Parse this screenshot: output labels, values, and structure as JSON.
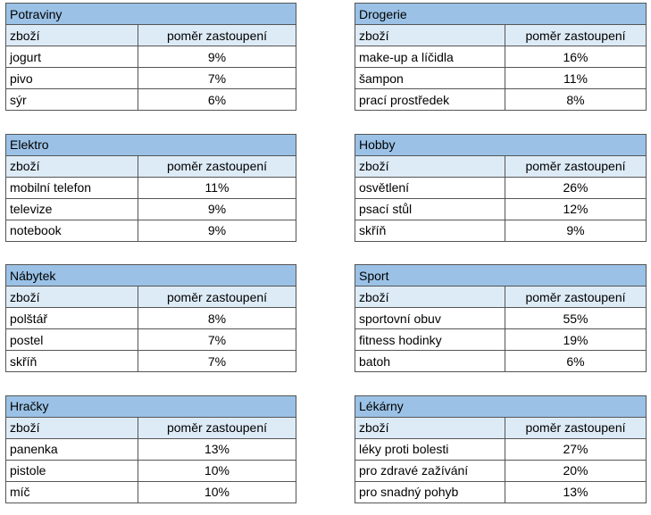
{
  "tables": [
    {
      "title": "Potraviny",
      "header": [
        "zboží",
        "poměr zastoupení"
      ],
      "rows": [
        [
          "jogurt",
          "9%"
        ],
        [
          "pivo",
          "7%"
        ],
        [
          "sýr",
          "6%"
        ]
      ]
    },
    {
      "title": "Drogerie",
      "header": [
        "zboží",
        "poměr zastoupení"
      ],
      "rows": [
        [
          "make-up a líčidla",
          "16%"
        ],
        [
          "šampon",
          "11%"
        ],
        [
          "prací prostředek",
          "8%"
        ]
      ]
    },
    {
      "title": "Elektro",
      "header": [
        "zboží",
        "poměr zastoupení"
      ],
      "rows": [
        [
          "mobilní telefon",
          "11%"
        ],
        [
          "televize",
          "9%"
        ],
        [
          "notebook",
          "9%"
        ]
      ]
    },
    {
      "title": "Hobby",
      "header": [
        "zboží",
        "poměr zastoupení"
      ],
      "rows": [
        [
          "osvětlení",
          "26%"
        ],
        [
          "psací stůl",
          "12%"
        ],
        [
          "skříň",
          "9%"
        ]
      ]
    },
    {
      "title": "Nábytek",
      "header": [
        "zboží",
        "poměr zastoupení"
      ],
      "rows": [
        [
          "polštář",
          "8%"
        ],
        [
          "postel",
          "7%"
        ],
        [
          "skříň",
          "7%"
        ]
      ]
    },
    {
      "title": "Sport",
      "header": [
        "zboží",
        "poměr zastoupení"
      ],
      "rows": [
        [
          "sportovní obuv",
          "55%"
        ],
        [
          "fitness hodinky",
          "19%"
        ],
        [
          "batoh",
          "6%"
        ]
      ]
    },
    {
      "title": "Hračky",
      "header": [
        "zboží",
        "poměr zastoupení"
      ],
      "rows": [
        [
          "panenka",
          "13%"
        ],
        [
          "pistole",
          "10%"
        ],
        [
          "míč",
          "10%"
        ]
      ]
    },
    {
      "title": "Lékárny",
      "header": [
        "zboží",
        "poměr zastoupení"
      ],
      "rows": [
        [
          "léky proti bolesti",
          "27%"
        ],
        [
          "pro zdravé zažívání",
          "20%"
        ],
        [
          "pro snadný pohyb",
          "13%"
        ]
      ]
    }
  ]
}
